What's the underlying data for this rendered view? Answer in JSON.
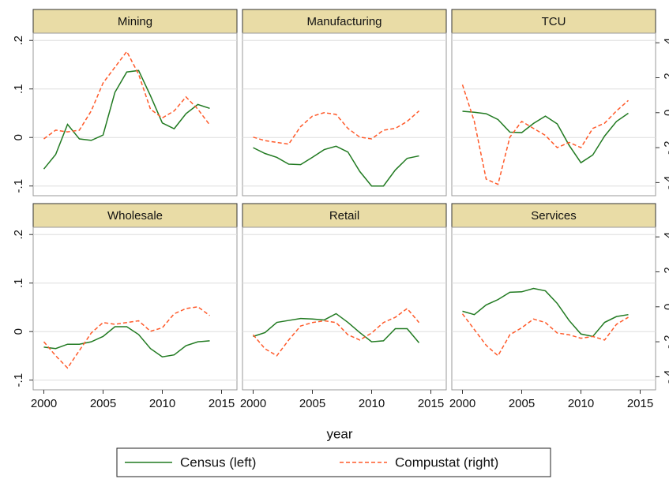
{
  "chart_data": {
    "type": "line",
    "x_label": "year",
    "x": [
      2000,
      2001,
      2002,
      2003,
      2004,
      2005,
      2006,
      2007,
      2008,
      2009,
      2010,
      2011,
      2012,
      2013,
      2014
    ],
    "xlim": [
      1999.1,
      2016.3
    ],
    "xticks": [
      2000,
      2005,
      2010,
      2015
    ],
    "ylim": [
      -0.12,
      0.215
    ],
    "yticks": [
      {
        "value": -0.1,
        "label": "-.1"
      },
      0,
      {
        "value": 0.1,
        "label": ".1"
      },
      {
        "value": 0.2,
        "label": ".2"
      }
    ],
    "y2lim": [
      -0.475,
      0.455
    ],
    "y2ticks": [
      {
        "value": -0.4,
        "label": "-.4"
      },
      {
        "value": -0.2,
        "label": "-.2"
      },
      0,
      {
        "value": 0.2,
        "label": ".2"
      },
      {
        "value": 0.4,
        "label": ".4"
      }
    ],
    "grid": true,
    "legend": "bottom",
    "series": [
      {
        "name": "Census (left)",
        "color": "#217a21",
        "axis": "y"
      },
      {
        "name": "Compustat (right)",
        "color": "#ff5a2a",
        "axis": "y2",
        "dashed": true
      }
    ],
    "panels": [
      {
        "title": "Mining",
        "values": [
          [
            -0.065,
            -0.035,
            0.027,
            -0.003,
            -0.006,
            0.005,
            0.093,
            0.135,
            0.138,
            0.086,
            0.03,
            0.018,
            0.049,
            0.068,
            0.06
          ],
          [
            -0.15,
            -0.1,
            -0.11,
            -0.1,
            0.01,
            0.17,
            0.26,
            0.35,
            0.22,
            0.02,
            -0.03,
            0.01,
            0.09,
            0.02,
            -0.07
          ]
        ]
      },
      {
        "title": "Manufacturing",
        "values": [
          [
            -0.021,
            -0.033,
            -0.041,
            -0.055,
            -0.056,
            -0.041,
            -0.025,
            -0.018,
            -0.03,
            -0.07,
            -0.1,
            -0.1,
            -0.067,
            -0.043,
            -0.038
          ],
          [
            -0.14,
            -0.16,
            -0.17,
            -0.18,
            -0.08,
            -0.02,
            0.0,
            -0.01,
            -0.09,
            -0.14,
            -0.15,
            -0.1,
            -0.09,
            -0.05,
            0.01
          ]
        ]
      },
      {
        "title": "TCU",
        "values": [
          [
            0.054,
            0.052,
            0.049,
            0.037,
            0.011,
            0.01,
            0.029,
            0.044,
            0.028,
            -0.016,
            -0.052,
            -0.036,
            0.003,
            0.033,
            0.05
          ],
          [
            0.16,
            -0.05,
            -0.38,
            -0.41,
            -0.14,
            -0.05,
            -0.09,
            -0.13,
            -0.2,
            -0.17,
            -0.2,
            -0.09,
            -0.06,
            0.01,
            0.07
          ]
        ]
      },
      {
        "title": "Wholesale",
        "values": [
          [
            -0.032,
            -0.035,
            -0.026,
            -0.026,
            -0.021,
            -0.01,
            0.01,
            0.01,
            -0.006,
            -0.035,
            -0.052,
            -0.048,
            -0.029,
            -0.021,
            -0.019
          ],
          [
            -0.2,
            -0.28,
            -0.35,
            -0.25,
            -0.15,
            -0.09,
            -0.1,
            -0.09,
            -0.08,
            -0.14,
            -0.12,
            -0.04,
            -0.01,
            0.0,
            -0.05
          ]
        ]
      },
      {
        "title": "Retail",
        "values": [
          [
            -0.01,
            -0.002,
            0.019,
            0.023,
            0.027,
            0.026,
            0.024,
            0.037,
            0.019,
            -0.002,
            -0.021,
            -0.019,
            0.006,
            0.006,
            -0.023
          ],
          [
            -0.16,
            -0.24,
            -0.28,
            -0.19,
            -0.11,
            -0.09,
            -0.08,
            -0.09,
            -0.16,
            -0.19,
            -0.15,
            -0.09,
            -0.06,
            -0.01,
            -0.09
          ]
        ]
      },
      {
        "title": "Services",
        "values": [
          [
            0.042,
            0.035,
            0.055,
            0.066,
            0.081,
            0.082,
            0.089,
            0.084,
            0.058,
            0.023,
            -0.005,
            -0.01,
            0.019,
            0.031,
            0.035
          ],
          [
            -0.04,
            -0.13,
            -0.22,
            -0.28,
            -0.16,
            -0.12,
            -0.07,
            -0.09,
            -0.15,
            -0.16,
            -0.18,
            -0.17,
            -0.19,
            -0.1,
            -0.06
          ]
        ]
      }
    ]
  }
}
